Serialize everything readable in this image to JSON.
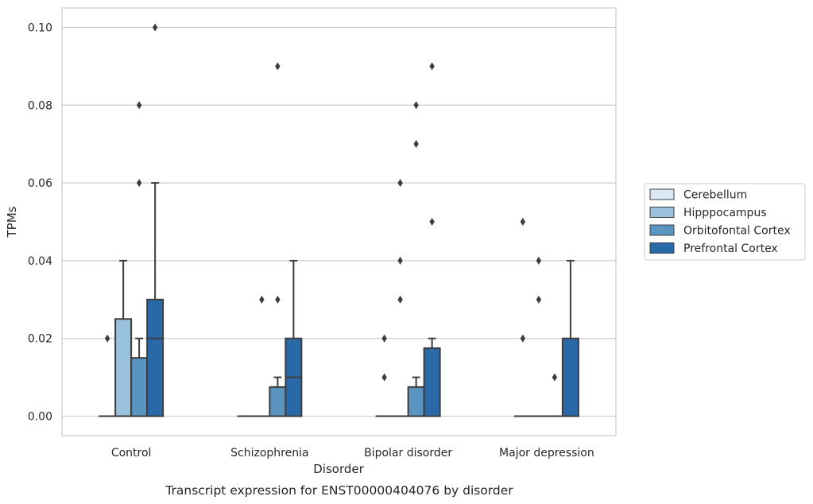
{
  "chart_data": {
    "type": "box",
    "title": "",
    "caption": "Transcript expression for ENST00000404076 by disorder",
    "xlabel": "Disorder",
    "ylabel": "TPMs",
    "ylim": [
      -0.005,
      0.105
    ],
    "yticks": [
      0.0,
      0.02,
      0.04,
      0.06,
      0.08,
      0.1
    ],
    "ytick_labels": [
      "0.00",
      "0.02",
      "0.04",
      "0.06",
      "0.08",
      "0.10"
    ],
    "grid": "horizontal",
    "legend_position": "outside-right",
    "categories": [
      "Control",
      "Schizophrenia",
      "Bipolar disorder",
      "Major depression"
    ],
    "series": [
      {
        "name": "Cerebellum",
        "color": "#dbe9f6",
        "boxes": [
          {
            "q1": 0,
            "median": 0,
            "q3": 0,
            "whisker_low": 0,
            "whisker_high": 0,
            "outliers": [
              0.02
            ]
          },
          {
            "q1": 0,
            "median": 0,
            "q3": 0,
            "whisker_low": 0,
            "whisker_high": 0,
            "outliers": []
          },
          {
            "q1": 0,
            "median": 0,
            "q3": 0,
            "whisker_low": 0,
            "whisker_high": 0,
            "outliers": [
              0.01,
              0.02
            ]
          },
          {
            "q1": 0,
            "median": 0,
            "q3": 0,
            "whisker_low": 0,
            "whisker_high": 0,
            "outliers": [
              0.02,
              0.05
            ]
          }
        ]
      },
      {
        "name": "Hipppocampus",
        "color": "#9ac1dc",
        "boxes": [
          {
            "q1": 0,
            "median": 0,
            "q3": 0.025,
            "whisker_low": 0,
            "whisker_high": 0.04,
            "outliers": []
          },
          {
            "q1": 0,
            "median": 0,
            "q3": 0,
            "whisker_low": 0,
            "whisker_high": 0,
            "outliers": [
              0.03
            ]
          },
          {
            "q1": 0,
            "median": 0,
            "q3": 0,
            "whisker_low": 0,
            "whisker_high": 0,
            "outliers": [
              0.03,
              0.04,
              0.06
            ]
          },
          {
            "q1": 0,
            "median": 0,
            "q3": 0,
            "whisker_low": 0,
            "whisker_high": 0,
            "outliers": [
              0.03,
              0.04
            ]
          }
        ]
      },
      {
        "name": "Orbitofontal Cortex",
        "color": "#5a95c2",
        "boxes": [
          {
            "q1": 0,
            "median": 0,
            "q3": 0.015,
            "whisker_low": 0,
            "whisker_high": 0.02,
            "outliers": [
              0.06,
              0.08
            ]
          },
          {
            "q1": 0,
            "median": 0,
            "q3": 0.0075,
            "whisker_low": 0,
            "whisker_high": 0.01,
            "outliers": [
              0.03,
              0.09
            ]
          },
          {
            "q1": 0,
            "median": 0,
            "q3": 0.0075,
            "whisker_low": 0,
            "whisker_high": 0.01,
            "outliers": [
              0.07,
              0.08
            ]
          },
          {
            "q1": 0,
            "median": 0,
            "q3": 0,
            "whisker_low": 0,
            "whisker_high": 0,
            "outliers": [
              0.01
            ]
          }
        ]
      },
      {
        "name": "Prefrontal Cortex",
        "color": "#2a69a8",
        "boxes": [
          {
            "q1": 0,
            "median": 0.02,
            "q3": 0.03,
            "whisker_low": 0,
            "whisker_high": 0.06,
            "outliers": [
              0.1
            ]
          },
          {
            "q1": 0,
            "median": 0.01,
            "q3": 0.02,
            "whisker_low": 0,
            "whisker_high": 0.04,
            "outliers": []
          },
          {
            "q1": 0,
            "median": 0,
            "q3": 0.0175,
            "whisker_low": 0,
            "whisker_high": 0.02,
            "outliers": [
              0.05,
              0.09
            ]
          },
          {
            "q1": 0,
            "median": 0,
            "q3": 0.02,
            "whisker_low": 0,
            "whisker_high": 0.04,
            "outliers": []
          }
        ]
      }
    ]
  }
}
